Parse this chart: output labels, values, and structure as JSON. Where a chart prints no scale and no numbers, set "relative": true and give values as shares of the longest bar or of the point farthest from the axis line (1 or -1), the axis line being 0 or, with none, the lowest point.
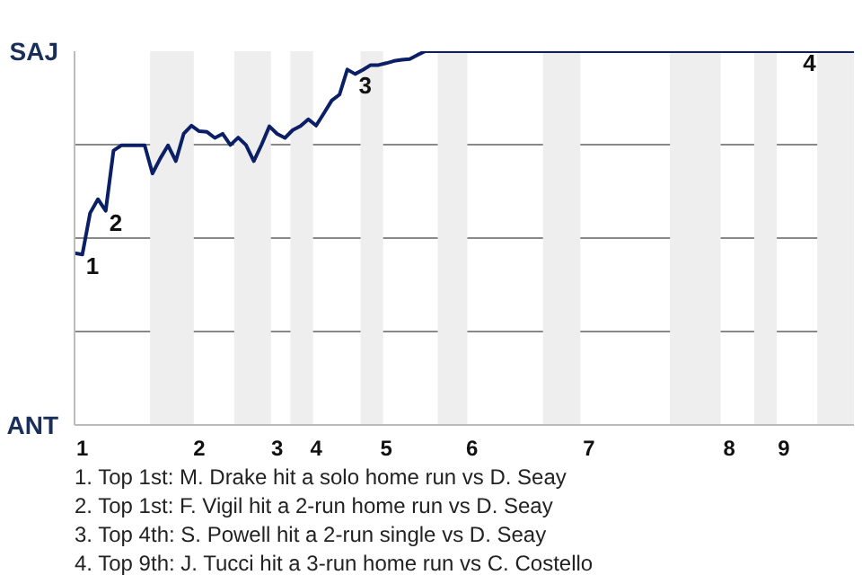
{
  "chart_data": {
    "type": "line",
    "relative": true,
    "categories": [
      null,
      "1",
      null,
      null,
      null,
      null,
      null,
      null,
      null,
      null,
      null,
      null,
      null,
      null,
      null,
      null,
      "2",
      null,
      null,
      null,
      null,
      null,
      null,
      null,
      null,
      null,
      "3",
      null,
      null,
      null,
      null,
      "4",
      null,
      null,
      null,
      null,
      null,
      null,
      null,
      null,
      "5",
      null,
      null,
      null,
      null,
      null,
      null,
      null,
      null,
      null,
      null,
      "6",
      null,
      null,
      null,
      null,
      null,
      null,
      null,
      null,
      null,
      null,
      null,
      null,
      null,
      null,
      "7",
      null,
      null,
      null,
      null,
      null,
      null,
      null,
      null,
      null,
      null,
      null,
      null,
      null,
      null,
      null,
      null,
      null,
      "8",
      null,
      null,
      null,
      null,
      null,
      null,
      "9",
      null,
      null,
      null,
      null,
      null,
      null,
      null,
      null,
      null
    ],
    "series": [
      {
        "color": "#0a1f66",
        "values": [
          0.46,
          0.456,
          0.567,
          0.604,
          0.573,
          0.734,
          0.748,
          0.748,
          0.748,
          0.748,
          0.673,
          0.713,
          0.748,
          0.706,
          0.779,
          0.801,
          0.786,
          0.784,
          0.768,
          0.779,
          0.749,
          0.769,
          0.749,
          0.706,
          0.75,
          0.799,
          0.779,
          0.768,
          0.789,
          0.8,
          0.818,
          0.801,
          0.834,
          0.868,
          0.884,
          0.951,
          0.939,
          0.95,
          0.963,
          0.963,
          0.968,
          0.974,
          0.977,
          0.979,
          0.99,
          1,
          1,
          1,
          1,
          1,
          1,
          1,
          1,
          1,
          1,
          1,
          1,
          1,
          1,
          1,
          1,
          1,
          1,
          1,
          1,
          1,
          1,
          1,
          1,
          1,
          1,
          1,
          1,
          1,
          1,
          1,
          1,
          1,
          1,
          1,
          1,
          1,
          1,
          1,
          1,
          1,
          1,
          1,
          1,
          1,
          1,
          1,
          1,
          1,
          1,
          1,
          1,
          1,
          1,
          1,
          1
        ]
      }
    ],
    "grid": "y",
    "marker": "none",
    "line_style": "solid",
    "annotations": [
      "SAJ",
      "ANT",
      "1",
      "2",
      "3",
      "4",
      "1. Top 1st: M. Drake hit a solo home run vs D. Seay",
      "2. Top 1st: F. Vigil hit a 2-run home run vs D. Seay",
      "3. Top 4th: S. Powell hit a 2-run single vs D. Seay",
      "4. Top 9th: J. Tucci hit a 3-run home run vs C. Costello"
    ]
  }
}
